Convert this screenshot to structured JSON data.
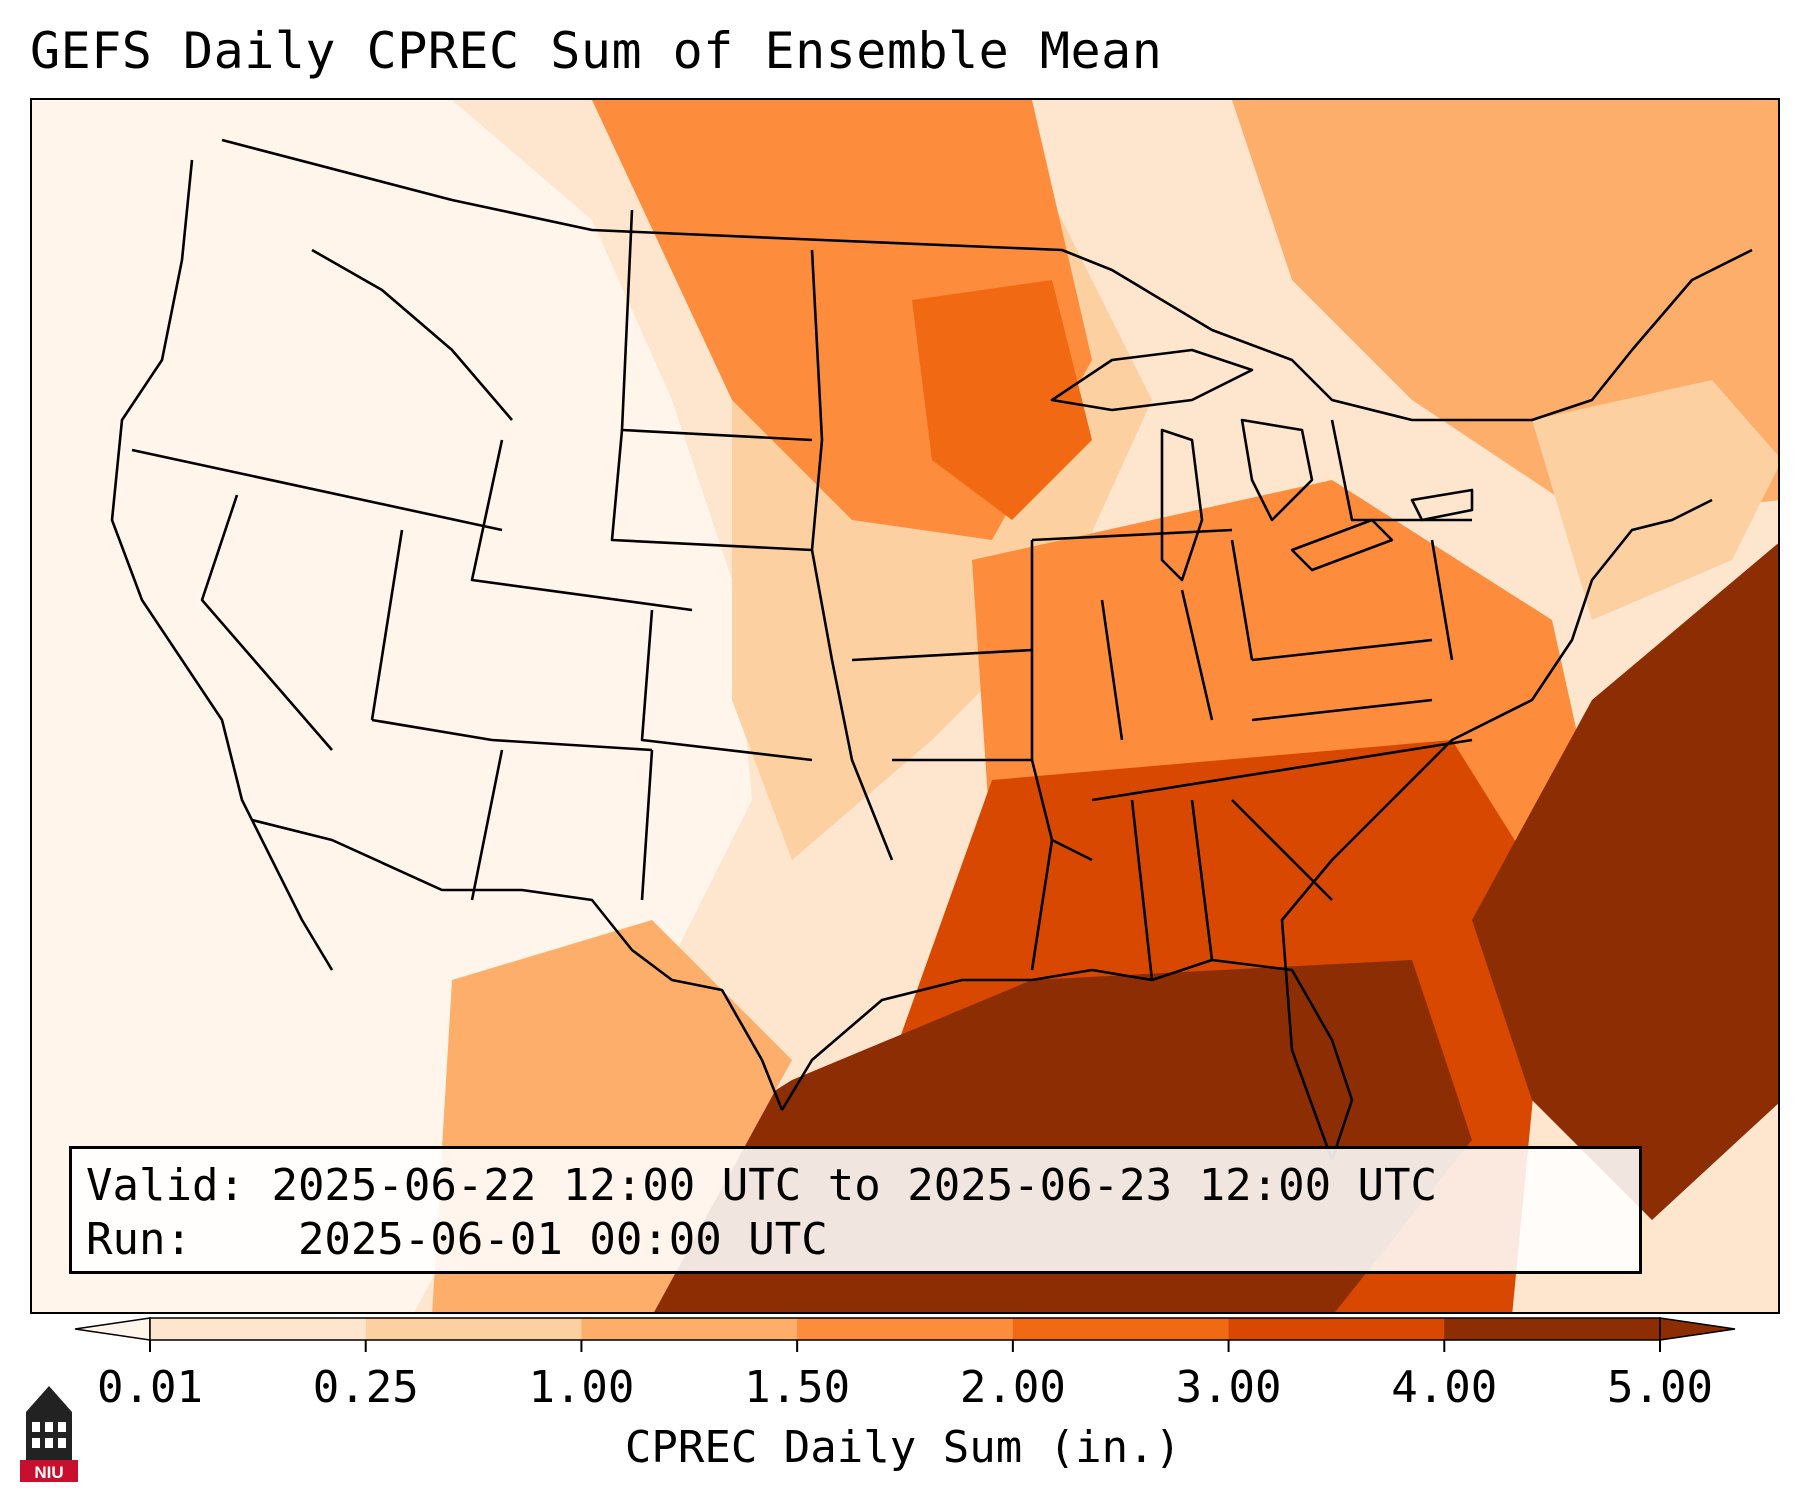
{
  "title": "GEFS Daily CPREC Sum of Ensemble Mean",
  "info": {
    "valid_label": "Valid:",
    "valid_value": "2025-06-22 12:00 UTC to 2025-06-23 12:00 UTC",
    "run_label": "Run:",
    "run_value": "2025-06-01 00:00 UTC"
  },
  "colorbar": {
    "label": "CPREC Daily Sum (in.)",
    "ticks": [
      "0.01",
      "0.25",
      "1.00",
      "1.50",
      "2.00",
      "3.00",
      "4.00",
      "5.00"
    ],
    "colors": [
      "#fff5eb",
      "#fee6ce",
      "#fdd0a2",
      "#fdae6b",
      "#fd8d3c",
      "#f16913",
      "#d94801",
      "#8c2d04"
    ],
    "extend": "both"
  },
  "map": {
    "region": "CONUS",
    "field": "CPREC",
    "colors": {
      "very_light": "#fff5eb",
      "light": "#fee6ce",
      "light_mid": "#fdd0a2",
      "mid": "#fdae6b",
      "mid_dark": "#fd8d3c",
      "dark": "#f16913",
      "darker": "#d94801",
      "darkest": "#8c2d04"
    }
  },
  "logo": {
    "icon": "university-tower-icon",
    "text": "NIU"
  }
}
